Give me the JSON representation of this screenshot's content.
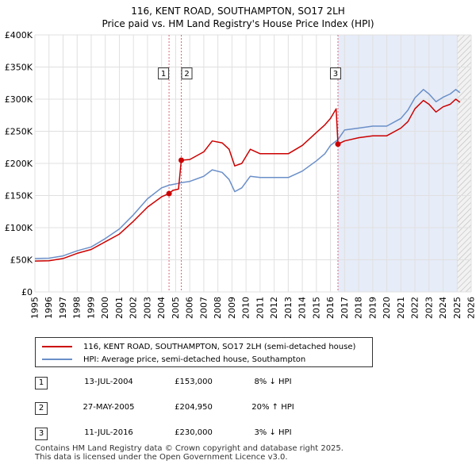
{
  "title": "116, KENT ROAD, SOUTHAMPTON, SO17 2LH",
  "subtitle": "Price paid vs. HM Land Registry's House Price Index (HPI)",
  "colors": {
    "property": "#cc0000",
    "hpi": "#6a8fc8",
    "shade": "#e6ecf8",
    "grid": "#e0e0e0",
    "vline": "#dd6677"
  },
  "chart_data": {
    "type": "line",
    "title": "116, KENT ROAD, SOUTHAMPTON, SO17 2LH",
    "subtitle": "Price paid vs. HM Land Registry's House Price Index (HPI)",
    "xlim": [
      1995,
      2026
    ],
    "ylim": [
      0,
      400000
    ],
    "y_ticks": [
      {
        "value": 0,
        "label": "£0"
      },
      {
        "value": 50000,
        "label": "£50K"
      },
      {
        "value": 100000,
        "label": "£100K"
      },
      {
        "value": 150000,
        "label": "£150K"
      },
      {
        "value": 200000,
        "label": "£200K"
      },
      {
        "value": 250000,
        "label": "£250K"
      },
      {
        "value": 300000,
        "label": "£300K"
      },
      {
        "value": 350000,
        "label": "£350K"
      },
      {
        "value": 400000,
        "label": "£400K"
      }
    ],
    "x_ticks": [
      1995,
      1996,
      1997,
      1998,
      1999,
      2000,
      2001,
      2002,
      2003,
      2004,
      2005,
      2006,
      2007,
      2008,
      2009,
      2010,
      2011,
      2012,
      2013,
      2014,
      2015,
      2016,
      2017,
      2018,
      2019,
      2020,
      2021,
      2022,
      2023,
      2024,
      2025,
      2026
    ],
    "shaded_regions": [
      {
        "x0": 2016.53,
        "x1": 2025.0
      },
      {
        "x0": 2025.0,
        "x1": 2026.0,
        "hatched": true
      }
    ],
    "series": [
      {
        "name": "116, KENT ROAD, SOUTHAMPTON, SO17 2LH (semi-detached house)",
        "color": "#cc0000",
        "points": [
          [
            1995.0,
            48000
          ],
          [
            1996.0,
            48500
          ],
          [
            1997.0,
            52000
          ],
          [
            1998.0,
            60000
          ],
          [
            1999.0,
            66000
          ],
          [
            2000.0,
            78000
          ],
          [
            2001.0,
            90000
          ],
          [
            2002.0,
            110000
          ],
          [
            2003.0,
            132000
          ],
          [
            2004.0,
            148000
          ],
          [
            2004.53,
            153000
          ],
          [
            2004.8,
            158000
          ],
          [
            2005.2,
            160000
          ],
          [
            2005.4,
            204950
          ],
          [
            2006.0,
            206000
          ],
          [
            2007.0,
            218000
          ],
          [
            2007.6,
            235000
          ],
          [
            2008.3,
            232000
          ],
          [
            2008.8,
            222000
          ],
          [
            2009.2,
            196000
          ],
          [
            2009.7,
            200000
          ],
          [
            2010.3,
            222000
          ],
          [
            2011.0,
            215000
          ],
          [
            2012.0,
            215000
          ],
          [
            2013.0,
            215000
          ],
          [
            2014.0,
            228000
          ],
          [
            2015.0,
            248000
          ],
          [
            2015.6,
            260000
          ],
          [
            2016.0,
            270000
          ],
          [
            2016.4,
            285000
          ],
          [
            2016.53,
            230000
          ],
          [
            2017.0,
            235000
          ],
          [
            2018.0,
            240000
          ],
          [
            2019.0,
            243000
          ],
          [
            2020.0,
            243000
          ],
          [
            2021.0,
            255000
          ],
          [
            2021.5,
            265000
          ],
          [
            2022.0,
            285000
          ],
          [
            2022.6,
            298000
          ],
          [
            2023.0,
            292000
          ],
          [
            2023.5,
            280000
          ],
          [
            2024.0,
            288000
          ],
          [
            2024.5,
            292000
          ],
          [
            2024.9,
            300000
          ],
          [
            2025.2,
            295000
          ]
        ]
      },
      {
        "name": "HPI: Average price, semi-detached house, Southampton",
        "color": "#6a8fc8",
        "points": [
          [
            1995.0,
            52000
          ],
          [
            1996.0,
            52500
          ],
          [
            1997.0,
            56000
          ],
          [
            1998.0,
            64000
          ],
          [
            1999.0,
            70000
          ],
          [
            2000.0,
            83000
          ],
          [
            2001.0,
            98000
          ],
          [
            2002.0,
            120000
          ],
          [
            2003.0,
            145000
          ],
          [
            2004.0,
            162000
          ],
          [
            2004.53,
            166000
          ],
          [
            2005.0,
            168000
          ],
          [
            2005.4,
            170000
          ],
          [
            2006.0,
            172000
          ],
          [
            2007.0,
            180000
          ],
          [
            2007.6,
            190000
          ],
          [
            2008.3,
            186000
          ],
          [
            2008.8,
            175000
          ],
          [
            2009.2,
            156000
          ],
          [
            2009.7,
            162000
          ],
          [
            2010.3,
            180000
          ],
          [
            2011.0,
            178000
          ],
          [
            2012.0,
            178000
          ],
          [
            2013.0,
            178000
          ],
          [
            2014.0,
            188000
          ],
          [
            2015.0,
            204000
          ],
          [
            2015.6,
            215000
          ],
          [
            2016.0,
            228000
          ],
          [
            2016.53,
            237000
          ],
          [
            2017.0,
            252000
          ],
          [
            2018.0,
            255000
          ],
          [
            2019.0,
            258000
          ],
          [
            2020.0,
            258000
          ],
          [
            2021.0,
            270000
          ],
          [
            2021.5,
            283000
          ],
          [
            2022.0,
            302000
          ],
          [
            2022.6,
            315000
          ],
          [
            2023.0,
            308000
          ],
          [
            2023.5,
            296000
          ],
          [
            2024.0,
            303000
          ],
          [
            2024.5,
            308000
          ],
          [
            2024.9,
            315000
          ],
          [
            2025.2,
            310000
          ]
        ]
      }
    ],
    "sales": [
      {
        "label": "1",
        "x": 2004.53,
        "price": 153000
      },
      {
        "label": "2",
        "x": 2005.4,
        "price": 204950
      },
      {
        "label": "3",
        "x": 2016.53,
        "price": 230000
      }
    ]
  },
  "legend": {
    "property": "116, KENT ROAD, SOUTHAMPTON, SO17 2LH (semi-detached house)",
    "hpi": "HPI: Average price, semi-detached house, Southampton"
  },
  "transactions": [
    {
      "num": "1",
      "date": "13-JUL-2004",
      "price": "£153,000",
      "delta": "8% ↓ HPI"
    },
    {
      "num": "2",
      "date": "27-MAY-2005",
      "price": "£204,950",
      "delta": "20% ↑ HPI"
    },
    {
      "num": "3",
      "date": "11-JUL-2016",
      "price": "£230,000",
      "delta": "3% ↓ HPI"
    }
  ],
  "footer": {
    "line1": "Contains HM Land Registry data © Crown copyright and database right 2025.",
    "line2": "This data is licensed under the Open Government Licence v3.0."
  }
}
